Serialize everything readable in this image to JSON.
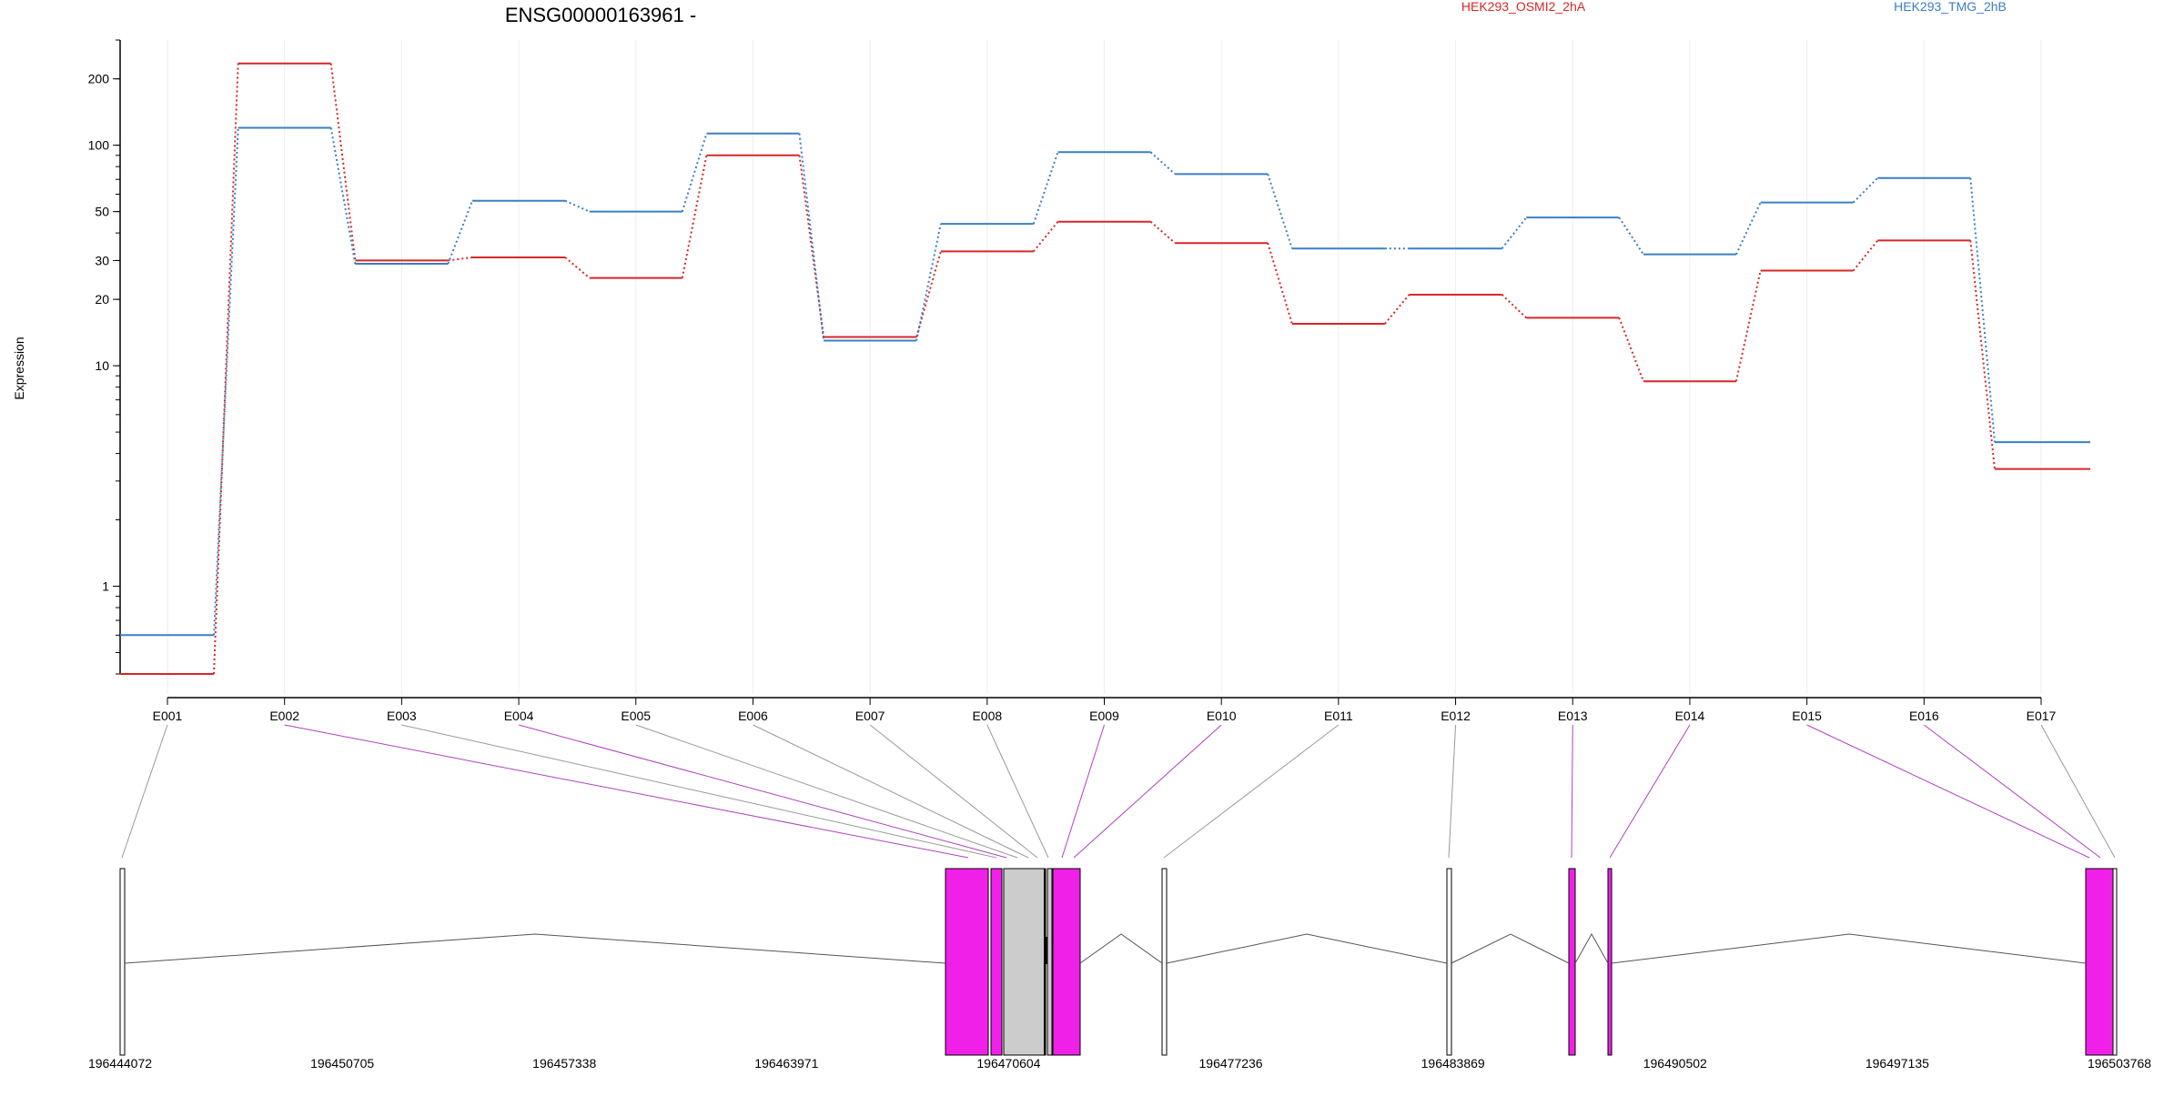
{
  "chart_data": {
    "type": "line",
    "title": "ENSG00000163961 -",
    "ylabel": "Expression",
    "xlabel": "",
    "y_scale": "log",
    "ylim": [
      0.4,
      300
    ],
    "yticks": [
      1,
      10,
      20,
      30,
      50,
      100,
      200
    ],
    "grid": true,
    "legend_position": "top",
    "categories": [
      "E001",
      "E002",
      "E003",
      "E004",
      "E005",
      "E006",
      "E007",
      "E008",
      "E009",
      "E010",
      "E011",
      "E012",
      "E013",
      "E014",
      "E015",
      "E016",
      "E017"
    ],
    "series": [
      {
        "name": "HEK293_OSMI2_2hA",
        "color": "#d62728",
        "values": [
          0.4,
          235,
          30,
          31,
          25,
          90,
          13.5,
          33,
          45,
          36,
          15.5,
          21,
          16.5,
          8.5,
          27,
          37,
          3.4
        ]
      },
      {
        "name": "HEK293_TMG_2hB",
        "color": "#3a7fc4",
        "values": [
          0.6,
          120,
          29,
          56,
          50,
          113,
          13,
          44,
          93,
          74,
          34,
          34,
          47,
          32,
          55,
          71,
          4.5
        ]
      }
    ],
    "gene_model": {
      "coordinate_labels": [
        "196444072",
        "196450705",
        "196457338",
        "196463971",
        "196470604",
        "196477236",
        "196483869",
        "196490502",
        "196497135",
        "196503768"
      ],
      "exon_highlight_color": "#f020e8",
      "exon_normal_color": "#ffffff",
      "exon_nc_color": "#cccccc",
      "highlighted_exons": [
        "E002",
        "E004",
        "E009",
        "E010",
        "E013",
        "E014",
        "E015",
        "E016"
      ]
    }
  }
}
